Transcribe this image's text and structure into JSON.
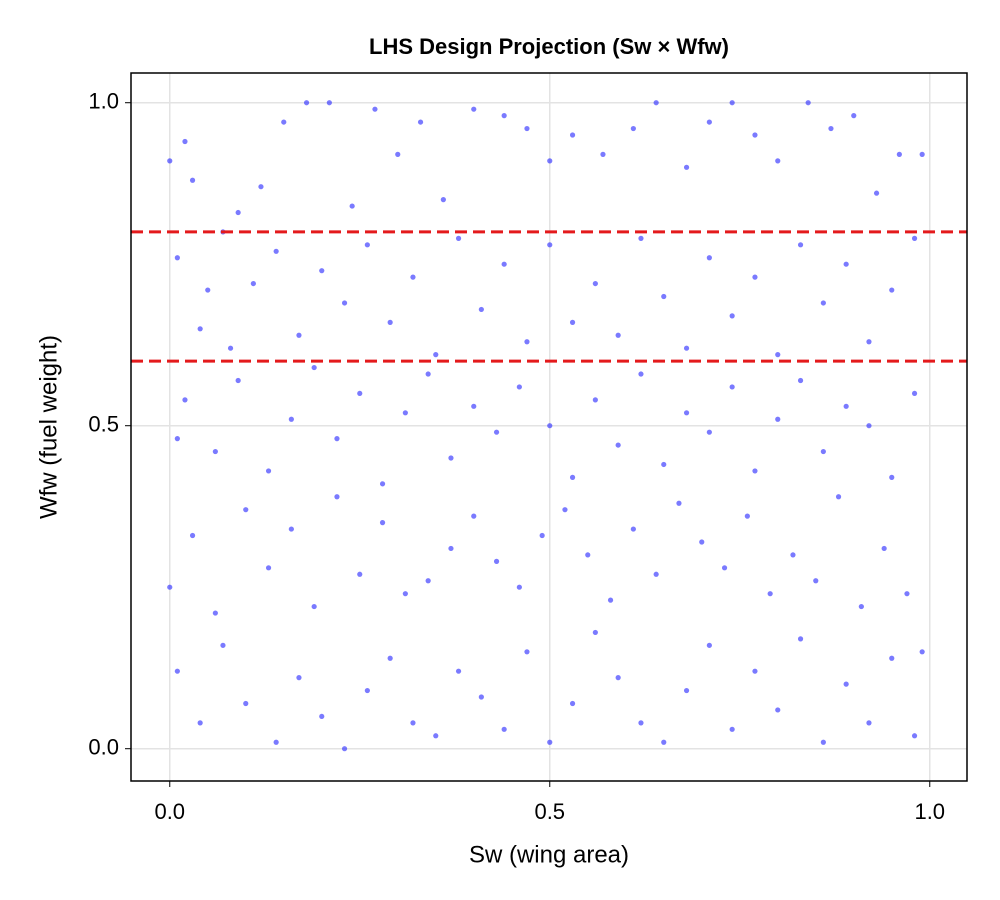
{
  "chart_data": {
    "type": "scatter",
    "title": "LHS Design Projection (Sw × Wfw)",
    "x_label": "Sw (wing area)",
    "y_label": "Wfw (fuel weight)",
    "color": "#3333ff",
    "grid": true,
    "xlim": [
      -0.051,
      1.049
    ],
    "ylim": [
      -0.05,
      1.046
    ],
    "xticks": [
      {
        "value": 0,
        "label": "0.0"
      },
      {
        "value": 0.5,
        "label": "0.5"
      },
      {
        "value": 1,
        "label": "1.0"
      }
    ],
    "yticks": [
      {
        "value": 0,
        "label": "0.0"
      },
      {
        "value": 0.5,
        "label": "0.5"
      },
      {
        "value": 1,
        "label": "1.0"
      }
    ],
    "hlines": [
      0.6,
      0.8
    ],
    "hline_color": "#e41a1c",
    "x": [
      0.0,
      0.01,
      0.02,
      0.03,
      0.05,
      0.07,
      0.09,
      0.12,
      0.15,
      0.18,
      0.21,
      0.24,
      0.27,
      0.3,
      0.33,
      0.36,
      0.4,
      0.44,
      0.47,
      0.5,
      0.53,
      0.57,
      0.61,
      0.64,
      0.68,
      0.71,
      0.74,
      0.77,
      0.8,
      0.84,
      0.87,
      0.9,
      0.93,
      0.96,
      0.99,
      0.01,
      0.04,
      0.08,
      0.11,
      0.14,
      0.17,
      0.2,
      0.23,
      0.26,
      0.29,
      0.32,
      0.35,
      0.38,
      0.41,
      0.44,
      0.47,
      0.5,
      0.53,
      0.56,
      0.59,
      0.62,
      0.65,
      0.68,
      0.71,
      0.74,
      0.77,
      0.8,
      0.83,
      0.86,
      0.89,
      0.92,
      0.95,
      0.98,
      0.02,
      0.06,
      0.09,
      0.13,
      0.16,
      0.19,
      0.22,
      0.25,
      0.28,
      0.31,
      0.34,
      0.37,
      0.4,
      0.43,
      0.46,
      0.5,
      0.53,
      0.56,
      0.59,
      0.62,
      0.65,
      0.68,
      0.71,
      0.74,
      0.77,
      0.8,
      0.83,
      0.86,
      0.89,
      0.92,
      0.95,
      0.98,
      0.0,
      0.03,
      0.06,
      0.1,
      0.13,
      0.16,
      0.19,
      0.22,
      0.25,
      0.28,
      0.31,
      0.34,
      0.37,
      0.4,
      0.43,
      0.46,
      0.49,
      0.52,
      0.55,
      0.58,
      0.61,
      0.64,
      0.67,
      0.7,
      0.73,
      0.76,
      0.79,
      0.82,
      0.85,
      0.88,
      0.91,
      0.94,
      0.97,
      0.01,
      0.04,
      0.07,
      0.1,
      0.14,
      0.17,
      0.2,
      0.23,
      0.26,
      0.29,
      0.32,
      0.35,
      0.38,
      0.41,
      0.44,
      0.47,
      0.5,
      0.53,
      0.56,
      0.59,
      0.62,
      0.65,
      0.68,
      0.71,
      0.74,
      0.77,
      0.8,
      0.83,
      0.86,
      0.89,
      0.92,
      0.95,
      0.98,
      0.99
    ],
    "values": [
      0.91,
      0.48,
      0.94,
      0.88,
      0.71,
      0.8,
      0.83,
      0.87,
      0.97,
      1.0,
      1.0,
      0.84,
      0.99,
      0.92,
      0.97,
      0.85,
      0.99,
      0.98,
      0.96,
      0.91,
      0.95,
      0.92,
      0.96,
      1.0,
      0.9,
      0.97,
      1.0,
      0.95,
      0.91,
      1.0,
      0.96,
      0.98,
      0.86,
      0.92,
      0.92,
      0.76,
      0.65,
      0.62,
      0.72,
      0.77,
      0.64,
      0.74,
      0.69,
      0.78,
      0.66,
      0.73,
      0.61,
      0.79,
      0.68,
      0.75,
      0.63,
      0.78,
      0.66,
      0.72,
      0.64,
      0.79,
      0.7,
      0.62,
      0.76,
      0.67,
      0.73,
      0.61,
      0.78,
      0.69,
      0.75,
      0.63,
      0.71,
      0.79,
      0.54,
      0.46,
      0.57,
      0.43,
      0.51,
      0.59,
      0.48,
      0.55,
      0.41,
      0.52,
      0.58,
      0.45,
      0.53,
      0.49,
      0.56,
      0.5,
      0.42,
      0.54,
      0.47,
      0.58,
      0.44,
      0.52,
      0.49,
      0.56,
      0.43,
      0.51,
      0.57,
      0.46,
      0.53,
      0.5,
      0.42,
      0.55,
      0.25,
      0.33,
      0.21,
      0.37,
      0.28,
      0.34,
      0.22,
      0.39,
      0.27,
      0.35,
      0.24,
      0.26,
      0.31,
      0.36,
      0.29,
      0.25,
      0.33,
      0.37,
      0.3,
      0.23,
      0.34,
      0.27,
      0.38,
      0.32,
      0.28,
      0.36,
      0.24,
      0.3,
      0.26,
      0.39,
      0.22,
      0.31,
      0.24,
      0.12,
      0.04,
      0.16,
      0.07,
      0.01,
      0.11,
      0.05,
      0.0,
      0.09,
      0.14,
      0.04,
      0.02,
      0.12,
      0.08,
      0.03,
      0.15,
      0.01,
      0.07,
      0.18,
      0.11,
      0.04,
      0.01,
      0.09,
      0.16,
      0.03,
      0.12,
      0.06,
      0.17,
      0.01,
      0.1,
      0.04,
      0.14,
      0.02,
      0.15
    ]
  }
}
